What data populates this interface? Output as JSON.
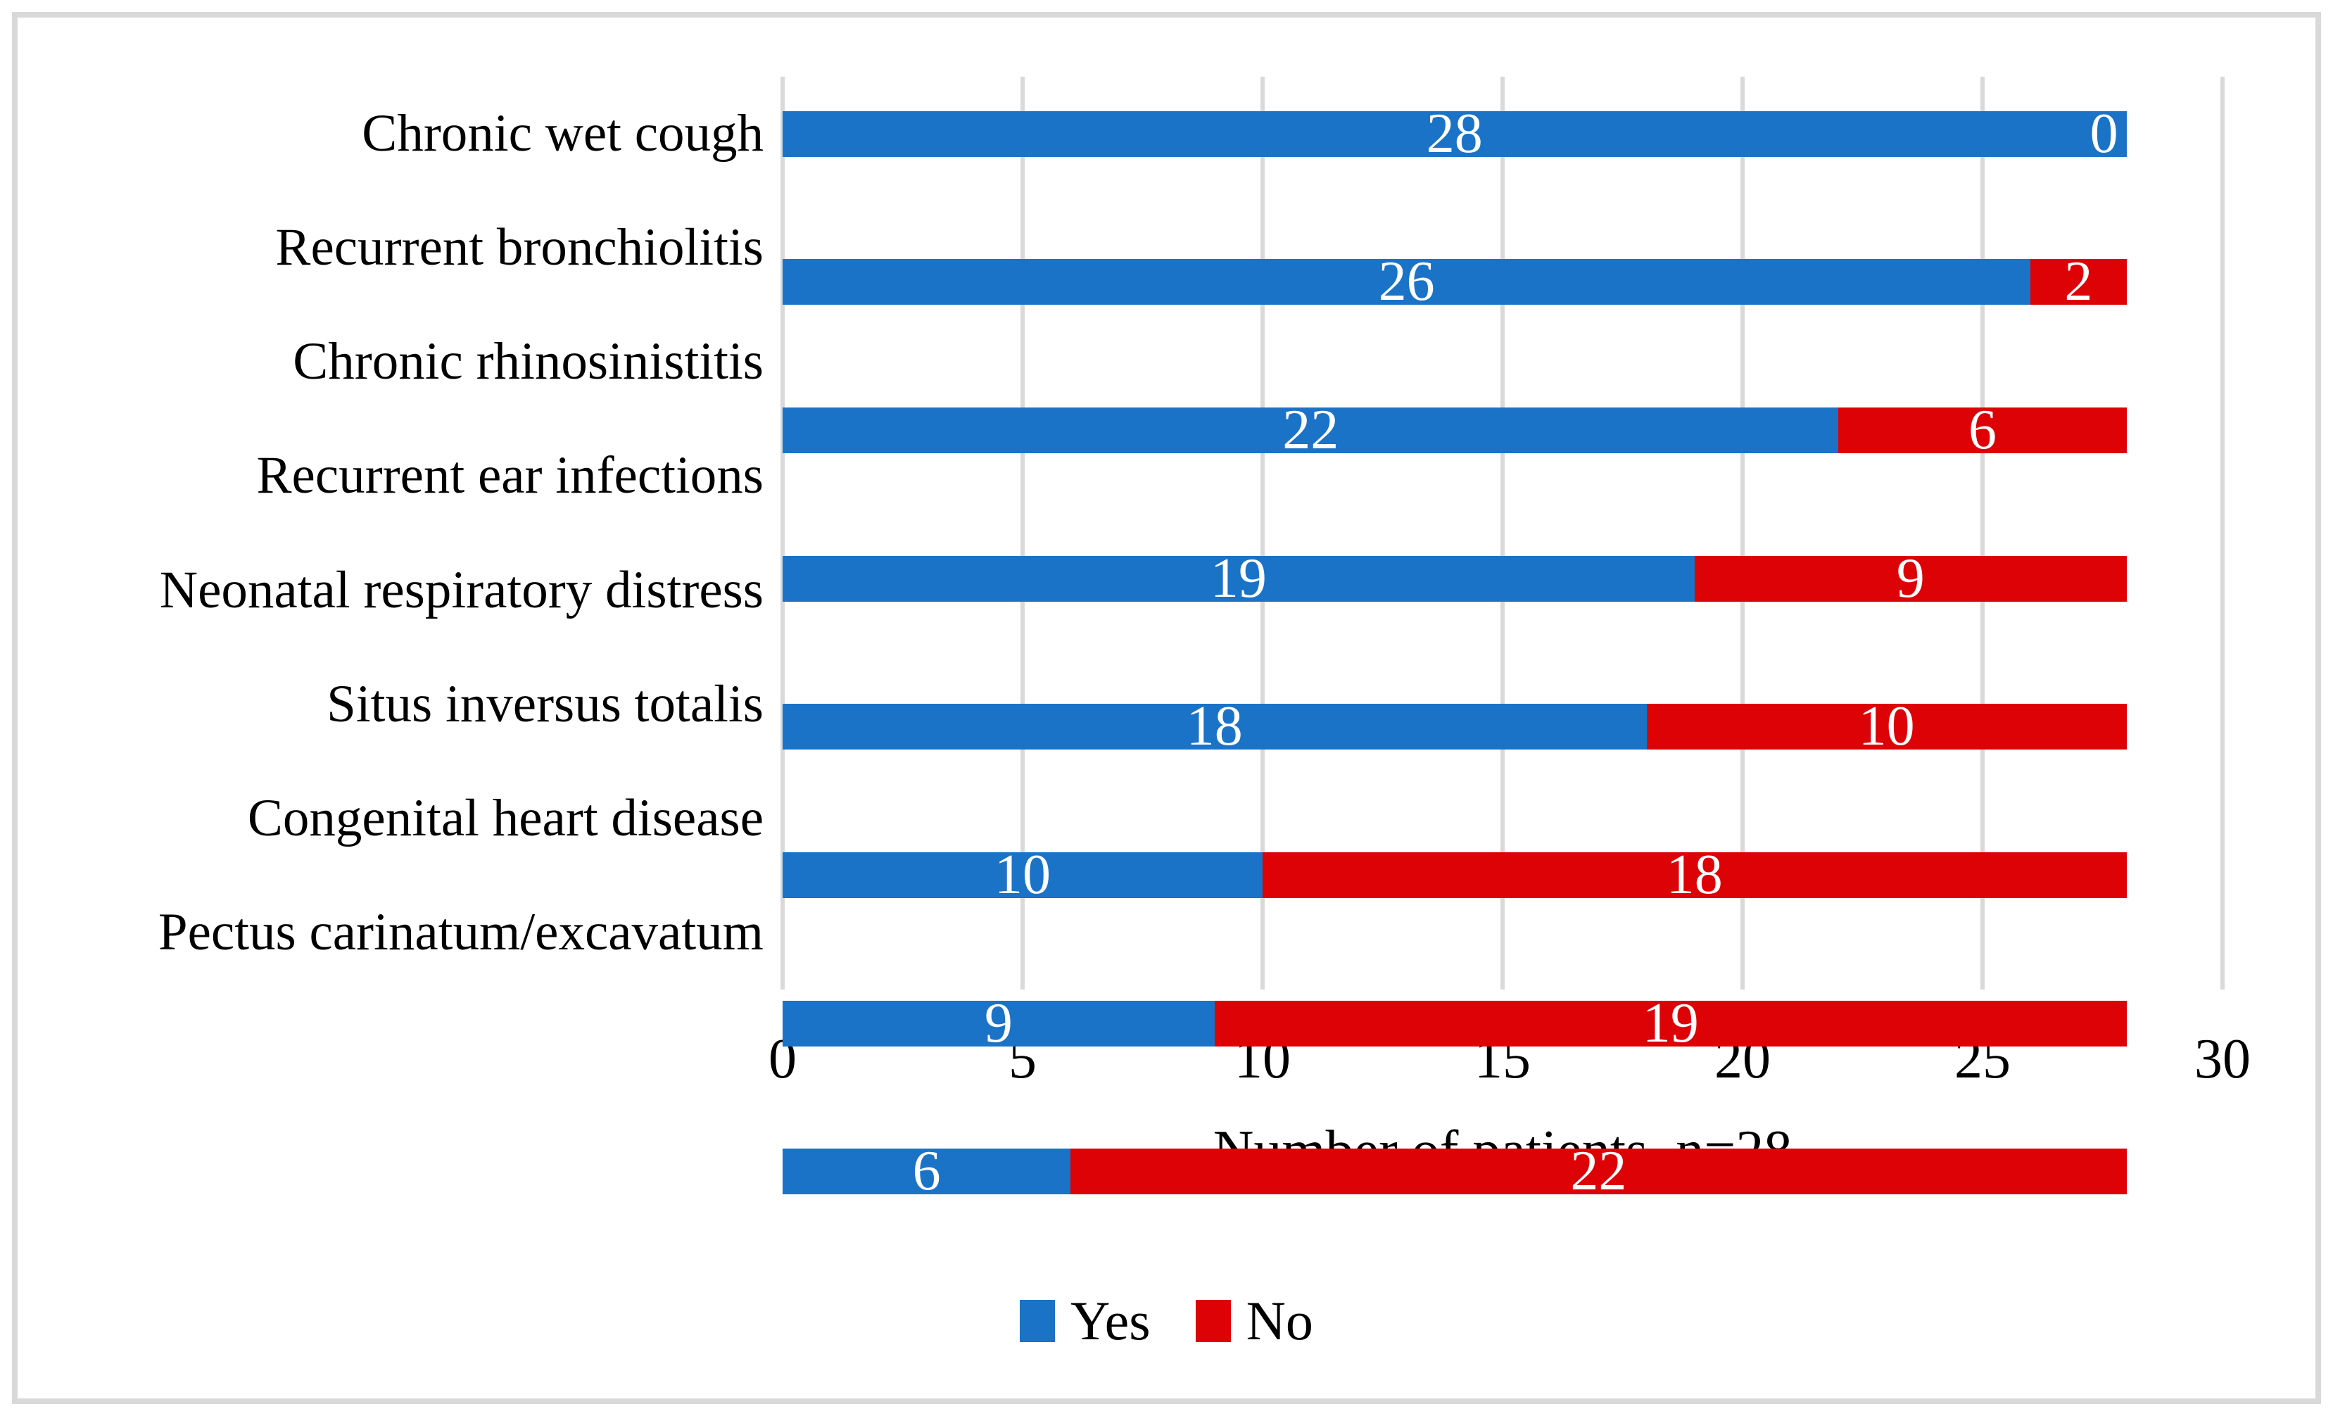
{
  "figure": {
    "background": "#FFFFFF",
    "border_color": "#D9D9D9"
  },
  "chart_data": {
    "type": "bar",
    "orientation": "horizontal",
    "stacked": true,
    "categories": [
      "Chronic wet cough",
      "Recurrent bronchiolitis",
      "Chronic rhinosinistitis",
      "Recurrent ear infections",
      "Neonatal respiratory distress",
      "Situs inversus totalis",
      "Congenital heart disease",
      "Pectus carinatum/excavatum"
    ],
    "series": [
      {
        "name": "Yes",
        "color": "#1B73C7",
        "values": [
          28,
          26,
          22,
          19,
          18,
          10,
          9,
          6
        ]
      },
      {
        "name": "No",
        "color": "#DD0205",
        "values": [
          0,
          2,
          6,
          9,
          10,
          18,
          19,
          22
        ]
      }
    ],
    "xlabel": "Number of patients, n=28",
    "xlim": [
      0,
      30
    ],
    "xticks": [
      0,
      5,
      10,
      15,
      20,
      25,
      30
    ],
    "grid": "vertical-gridlines-only",
    "gridline_color": "#D9D9D9",
    "value_label_color": "#FFFFFF",
    "legend_position": "bottom-center",
    "legend": [
      {
        "label": "Yes",
        "color": "#1B73C7"
      },
      {
        "label": "No",
        "color": "#DD0205"
      }
    ]
  }
}
